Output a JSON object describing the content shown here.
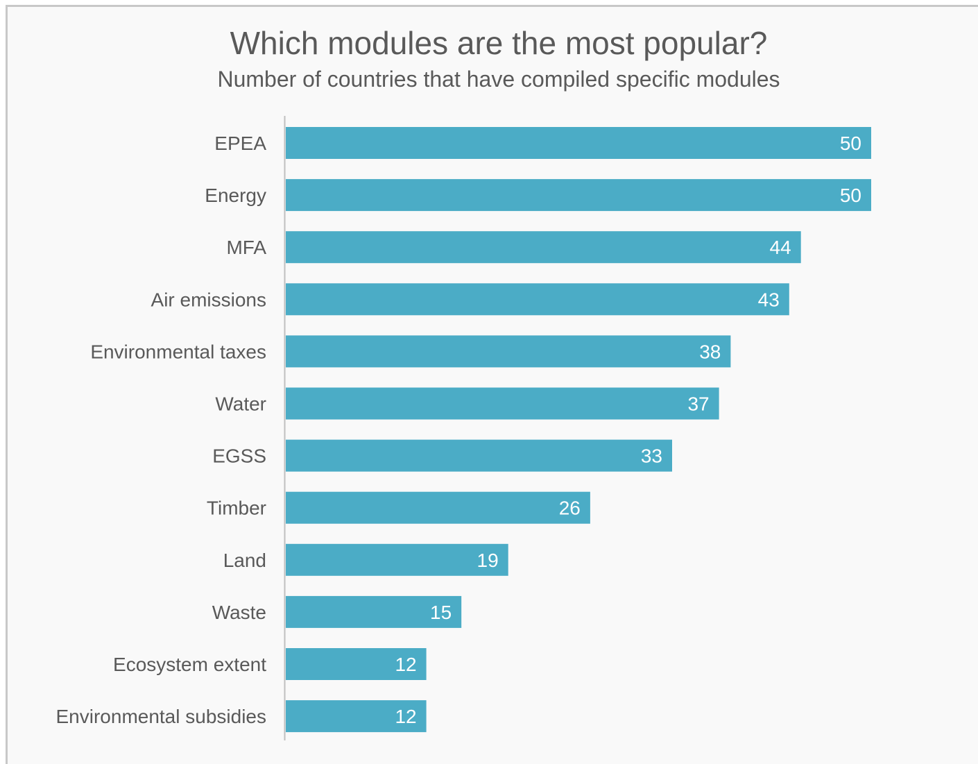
{
  "chart_data": {
    "type": "bar",
    "orientation": "horizontal",
    "title": "Which modules are the most popular?",
    "subtitle": "Number of countries that have compiled specific modules",
    "categories": [
      "EPEA",
      "Energy",
      "MFA",
      "Air emissions",
      "Environmental taxes",
      "Water",
      "EGSS",
      "Timber",
      "Land",
      "Waste",
      "Ecosystem extent",
      "Environmental subsidies"
    ],
    "values": [
      50,
      50,
      44,
      43,
      38,
      37,
      33,
      26,
      19,
      15,
      12,
      12
    ],
    "value_labels": [
      "50",
      "50",
      "44",
      "43",
      "38",
      "37",
      "33",
      "26",
      "19",
      "15",
      "12",
      "12"
    ],
    "xlim": [
      0,
      50
    ],
    "grid": false,
    "legend": "none",
    "bar_color": "#4bacc6",
    "axis_color": "#bfbfbf",
    "text_color": "#595959",
    "background_color": "#f9f9f9"
  }
}
